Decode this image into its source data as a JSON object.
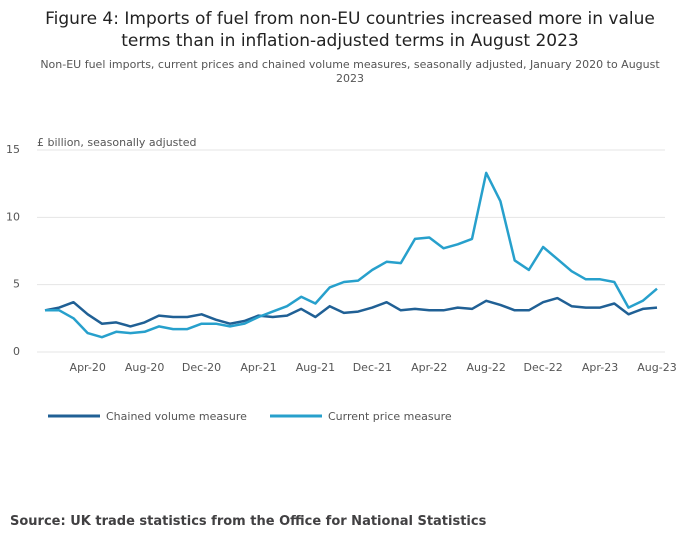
{
  "chart_data": {
    "type": "line",
    "title": "Figure 4: Imports of fuel from non-EU countries increased more in value terms than in inflation-adjusted terms in August 2023",
    "subtitle": "Non-EU fuel imports, current prices and chained volume measures, seasonally adjusted, January 2020 to August 2023",
    "y_label": "£ billion, seasonally adjusted",
    "source": "Source: UK trade statistics from the Office for National Statistics",
    "categories": [
      null,
      null,
      null,
      "Apr-20",
      null,
      null,
      null,
      "Aug-20",
      null,
      null,
      null,
      "Dec-20",
      null,
      null,
      null,
      "Apr-21",
      null,
      null,
      null,
      "Aug-21",
      null,
      null,
      null,
      "Dec-21",
      null,
      null,
      null,
      "Apr-22",
      null,
      null,
      null,
      "Aug-22",
      null,
      null,
      null,
      "Dec-22",
      null,
      null,
      null,
      "Apr-23",
      null,
      null,
      null,
      "Aug-23"
    ],
    "series": [
      {
        "name": "Chained volume measure",
        "color": "#206095",
        "values": [
          3.1,
          3.3,
          3.7,
          2.8,
          2.1,
          2.2,
          1.9,
          2.2,
          2.7,
          2.6,
          2.6,
          2.8,
          2.4,
          2.1,
          2.3,
          2.7,
          2.6,
          2.7,
          3.2,
          2.6,
          3.4,
          2.9,
          3.0,
          3.3,
          3.7,
          3.1,
          3.2,
          3.1,
          3.1,
          3.3,
          3.2,
          3.8,
          3.5,
          3.1,
          3.1,
          3.7,
          4.0,
          3.4,
          3.3,
          3.3,
          3.6,
          2.8,
          3.2,
          3.3
        ]
      },
      {
        "name": "Current price measure",
        "color": "#27a0cc",
        "values": [
          3.1,
          3.1,
          2.5,
          1.4,
          1.1,
          1.5,
          1.4,
          1.5,
          1.9,
          1.7,
          1.7,
          2.1,
          2.1,
          1.9,
          2.1,
          2.6,
          3.0,
          3.4,
          4.1,
          3.6,
          4.8,
          5.2,
          5.3,
          6.1,
          6.7,
          6.6,
          8.4,
          8.5,
          7.7,
          8.0,
          8.4,
          13.3,
          11.2,
          6.8,
          6.1,
          7.8,
          6.9,
          6.0,
          5.4,
          5.4,
          5.2,
          3.3,
          3.8,
          4.7
        ]
      }
    ],
    "ylim": [
      0,
      15
    ],
    "yticks": [
      0,
      5,
      10,
      15
    ],
    "grid": true
  }
}
